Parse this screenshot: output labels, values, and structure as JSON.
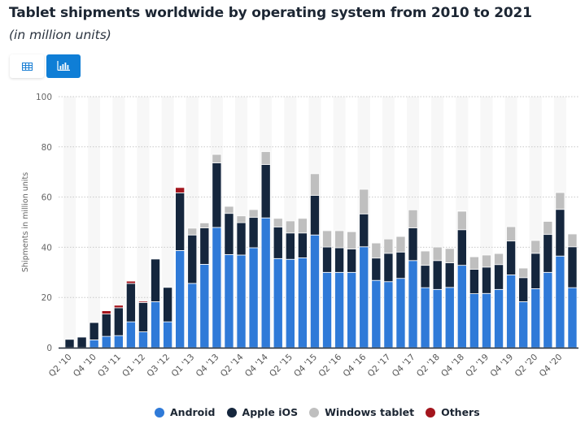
{
  "header": {
    "title": "Tablet shipments worldwide by operating system from 2010 to 2021",
    "subtitle": "(in million units)"
  },
  "toolbar": {
    "table_view_icon": "table-grid-icon",
    "chart_view_icon": "bar-chart-icon",
    "active_view": "chart"
  },
  "colors": {
    "Android": "#2f7ad8",
    "Apple iOS": "#15263d",
    "Windows tablet": "#bfbfbf",
    "Others": "#a3151d",
    "accent": "#0f7ed6"
  },
  "chart_data": {
    "type": "bar",
    "stacked": true,
    "title": "Tablet shipments worldwide by operating system from 2010 to 2021",
    "subtitle": "(in million units)",
    "xlabel": "",
    "ylabel": "Shipments in million units",
    "ylim": [
      0,
      100
    ],
    "yticks": [
      0,
      20,
      40,
      60,
      80,
      100
    ],
    "grid": true,
    "legend_position": "bottom",
    "categories": [
      "Q2 '10",
      "Q3 '10",
      "Q4 '10",
      "Q2 '11",
      "Q3 '11",
      "Q4 '11",
      "Q1 '12",
      "Q2 '12",
      "Q3 '12",
      "Q4 '12",
      "Q1 '13",
      "Q2 '13",
      "Q4 '13",
      "Q1 '14",
      "Q2 '14",
      "Q3 '14",
      "Q4 '14",
      "Q1 '15",
      "Q2 '15",
      "Q3 '15",
      "Q4 '15",
      "Q1 '16",
      "Q2 '16",
      "Q3 '16",
      "Q4 '16",
      "Q1 '17",
      "Q2 '17",
      "Q3 '17",
      "Q4 '17",
      "Q1 '18",
      "Q2 '18",
      "Q3 '18",
      "Q4 '18",
      "Q1 '19",
      "Q2 '19",
      "Q3 '19",
      "Q4 '19",
      "Q1 '20",
      "Q2 '20",
      "Q3 '20",
      "Q4 '20",
      "Q1 '21"
    ],
    "visible_tick_labels": [
      "Q2 '10",
      "Q4 '10",
      "Q3 '11",
      "Q1 '12",
      "Q3 '12",
      "Q1 '13",
      "Q4 '13",
      "Q2 '14",
      "Q4 '14",
      "Q2 '15",
      "Q4 '15",
      "Q2 '16",
      "Q4 '16",
      "Q2 '17",
      "Q4 '17",
      "Q2 '18",
      "Q4 '18",
      "Q2 '19",
      "Q4 '19",
      "Q2 '20",
      "Q4 '20"
    ],
    "series": [
      {
        "name": "Android",
        "values": [
          0,
          0,
          3.1,
          4.5,
          4.8,
          10.3,
          6.3,
          18.3,
          10.3,
          38.7,
          25.6,
          33.2,
          47.9,
          37.1,
          36.9,
          39.8,
          51.7,
          35.5,
          35.2,
          35.8,
          44.9,
          30.0,
          30.0,
          30.0,
          40.2,
          26.8,
          26.3,
          27.6,
          34.7,
          23.9,
          23.2,
          24.0,
          32.8,
          21.5,
          21.6,
          23.2,
          29.0,
          18.3,
          23.5,
          30.0,
          36.5,
          23.9
        ]
      },
      {
        "name": "Apple iOS",
        "values": [
          3.3,
          4.2,
          6.9,
          8.9,
          11.1,
          15.3,
          11.7,
          17.0,
          13.7,
          23.0,
          19.3,
          14.5,
          25.7,
          16.4,
          12.9,
          12.1,
          21.3,
          12.6,
          10.5,
          9.9,
          15.8,
          10.1,
          9.8,
          9.3,
          13.1,
          8.9,
          11.3,
          10.5,
          13.0,
          8.9,
          11.5,
          9.8,
          14.2,
          9.7,
          10.5,
          9.9,
          13.5,
          9.6,
          14.1,
          15.1,
          18.6,
          16.3
        ]
      },
      {
        "name": "Windows tablet",
        "values": [
          0,
          0,
          0,
          0,
          0,
          0,
          0,
          0,
          0,
          0,
          2.7,
          2.0,
          3.4,
          2.8,
          2.7,
          3.1,
          5.1,
          3.4,
          4.8,
          5.8,
          8.6,
          6.5,
          6.8,
          6.9,
          9.8,
          6.0,
          5.7,
          6.2,
          7.2,
          5.7,
          5.4,
          5.7,
          7.4,
          5.0,
          4.8,
          4.4,
          5.7,
          3.8,
          5.1,
          5.2,
          6.7,
          5.1
        ]
      },
      {
        "name": "Others",
        "values": [
          0,
          0,
          0,
          1.3,
          1.0,
          0.9,
          0.5,
          0,
          0,
          2.1,
          0,
          0,
          0,
          0,
          0,
          0,
          0,
          0,
          0,
          0,
          0,
          0,
          0,
          0,
          0,
          0,
          0,
          0,
          0,
          0,
          0,
          0,
          0.2,
          0,
          0,
          0,
          0,
          0,
          0,
          0,
          0,
          0
        ]
      }
    ]
  },
  "legend": [
    {
      "label": "Android"
    },
    {
      "label": "Apple iOS"
    },
    {
      "label": "Windows tablet"
    },
    {
      "label": "Others"
    }
  ]
}
